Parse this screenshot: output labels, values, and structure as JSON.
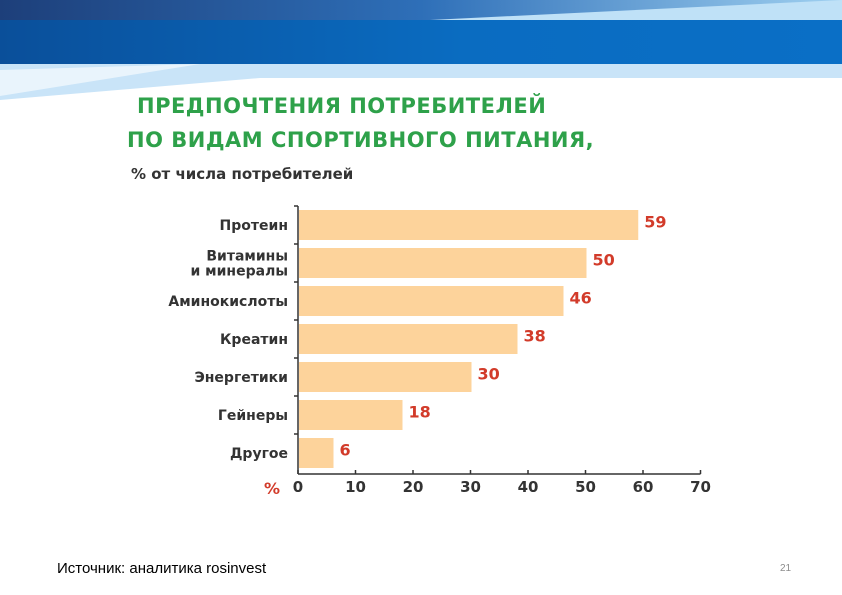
{
  "slide": {
    "source": "Источник: аналитика rosinvest",
    "page_number": "21"
  },
  "colors": {
    "bar": "#fdd39b",
    "value_label": "#d23b2a",
    "title": "#2ea14a",
    "axis": "#333333",
    "header_dark": "#0a5fae",
    "header_light": "#c9e4f8"
  },
  "chart_data": {
    "type": "bar",
    "orientation": "horizontal",
    "title_line1": "ПРЕДПОЧТЕНИЯ ПОТРЕБИТЕЛЕЙ",
    "title_line2": "ПО ВИДАМ СПОРТИВНОГО ПИТАНИЯ,",
    "subtitle": "% от числа потребителей",
    "categories": [
      [
        "Протеин"
      ],
      [
        "Витамины",
        "и минералы"
      ],
      [
        "Аминокислоты"
      ],
      [
        "Креатин"
      ],
      [
        "Энергетики"
      ],
      [
        "Гейнеры"
      ],
      [
        "Другое"
      ]
    ],
    "values": [
      59,
      50,
      46,
      38,
      30,
      18,
      6
    ],
    "value_labels": [
      "59",
      "50",
      "46",
      "38",
      "30",
      "18",
      "6"
    ],
    "x_unit_label": "%",
    "xlim": [
      0,
      70
    ],
    "xticks": [
      "0",
      "10",
      "20",
      "30",
      "40",
      "50",
      "60",
      "70"
    ],
    "grid": false,
    "legend": "none"
  }
}
